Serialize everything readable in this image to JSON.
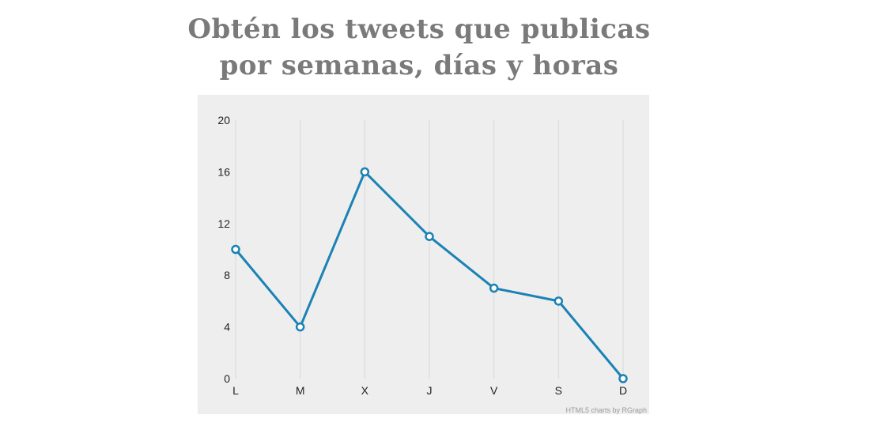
{
  "page": {
    "title_line1": "Obtén los tweets que publicas",
    "title_line2": "por semanas, días y horas"
  },
  "chart_data": {
    "type": "line",
    "categories": [
      "L",
      "M",
      "X",
      "J",
      "V",
      "S",
      "D"
    ],
    "values": [
      10,
      4,
      16,
      11,
      7,
      6,
      0
    ],
    "ylim": [
      0,
      20
    ],
    "yticks": [
      "0",
      "4",
      "8",
      "12",
      "16",
      "20"
    ],
    "grid": "vertical",
    "line_color": "#1a82b4",
    "background_color": "#eeeeee",
    "credit": "HTML5 charts by RGraph"
  }
}
